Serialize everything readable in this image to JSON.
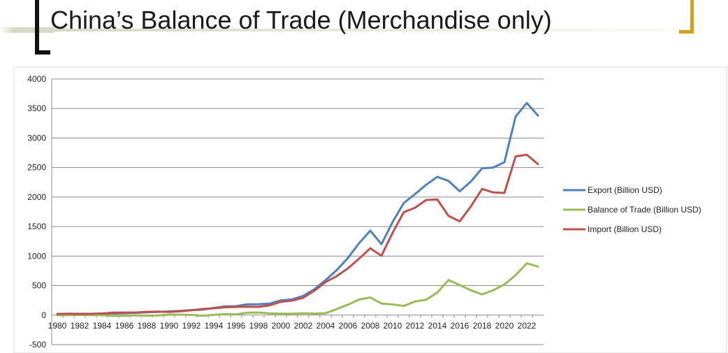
{
  "slide": {
    "title": "China’s Balance of Trade (Merchandise only)"
  },
  "chart_data": {
    "type": "line",
    "x": [
      1980,
      1981,
      1982,
      1983,
      1984,
      1985,
      1986,
      1987,
      1988,
      1989,
      1990,
      1991,
      1992,
      1993,
      1994,
      1995,
      1996,
      1997,
      1998,
      1999,
      2000,
      2001,
      2002,
      2003,
      2004,
      2005,
      2006,
      2007,
      2008,
      2009,
      2010,
      2011,
      2012,
      2013,
      2014,
      2015,
      2016,
      2017,
      2018,
      2019,
      2020,
      2021,
      2022,
      2023
    ],
    "x_tick_labels": [
      "1980",
      "1982",
      "1984",
      "1986",
      "1988",
      "1990",
      "1992",
      "1994",
      "1996",
      "1998",
      "2000",
      "2002",
      "2004",
      "2006",
      "2008",
      "2010",
      "2012",
      "2014",
      "2016",
      "2018",
      "2020",
      "2022"
    ],
    "ylim": [
      -500,
      4000
    ],
    "y_ticks": [
      4000,
      3500,
      3000,
      2500,
      2000,
      1500,
      1000,
      500,
      0,
      -500
    ],
    "grid": true,
    "legend_position": "right",
    "series": [
      {
        "name": "Export (Billion USD)",
        "color": "#4f81bd",
        "values": [
          18,
          22,
          22,
          22,
          26,
          27,
          31,
          39,
          48,
          53,
          62,
          72,
          85,
          92,
          121,
          149,
          151,
          183,
          184,
          195,
          249,
          266,
          326,
          438,
          593,
          762,
          969,
          1218,
          1430,
          1202,
          1578,
          1899,
          2049,
          2209,
          2342,
          2273,
          2098,
          2263,
          2487,
          2499,
          2590,
          3364,
          3594,
          3380
        ]
      },
      {
        "name": "Balance of Trade (Billion USD)",
        "color": "#9bbb59",
        "values": [
          -2,
          0,
          3,
          1,
          -1,
          -15,
          -12,
          -4,
          -8,
          -7,
          9,
          8,
          4,
          -12,
          5,
          17,
          12,
          40,
          43,
          29,
          24,
          23,
          30,
          25,
          32,
          102,
          177,
          264,
          298,
          196,
          181,
          155,
          231,
          259,
          383,
          594,
          510,
          420,
          350,
          421,
          520,
          676,
          877,
          823
        ]
      },
      {
        "name": "Import (Billion USD)",
        "color": "#c0504d",
        "values": [
          20,
          22,
          19,
          21,
          27,
          42,
          43,
          43,
          55,
          59,
          53,
          64,
          81,
          104,
          116,
          132,
          139,
          142,
          140,
          166,
          225,
          244,
          295,
          413,
          561,
          660,
          792,
          956,
          1132,
          1006,
          1397,
          1744,
          1818,
          1950,
          1959,
          1680,
          1588,
          1843,
          2137,
          2078,
          2070,
          2688,
          2717,
          2557
        ]
      }
    ]
  }
}
